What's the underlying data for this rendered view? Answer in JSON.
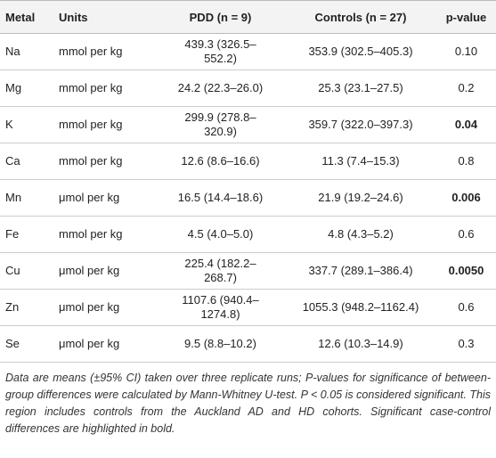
{
  "table": {
    "header": [
      "Metal",
      "Units",
      "PDD (n = 9)",
      "Controls (n = 27)",
      "p-value"
    ],
    "rows": [
      {
        "metal": "Na",
        "units": "mmol per kg",
        "pdd": "439.3 (326.5–552.2)",
        "controls": "353.9 (302.5–405.3)",
        "p": "0.10",
        "bold": false
      },
      {
        "metal": "Mg",
        "units": "mmol per kg",
        "pdd": "24.2 (22.3–26.0)",
        "controls": "25.3 (23.1–27.5)",
        "p": "0.2",
        "bold": false
      },
      {
        "metal": "K",
        "units": "mmol per kg",
        "pdd": "299.9 (278.8–320.9)",
        "controls": "359.7 (322.0–397.3)",
        "p": "0.04",
        "bold": true
      },
      {
        "metal": "Ca",
        "units": "mmol per kg",
        "pdd": "12.6 (8.6–16.6)",
        "controls": "11.3 (7.4–15.3)",
        "p": "0.8",
        "bold": false
      },
      {
        "metal": "Mn",
        "units": "μmol per kg",
        "pdd": "16.5 (14.4–18.6)",
        "controls": "21.9 (19.2–24.6)",
        "p": "0.006",
        "bold": true
      },
      {
        "metal": "Fe",
        "units": "mmol per kg",
        "pdd": "4.5 (4.0–5.0)",
        "controls": "4.8 (4.3–5.2)",
        "p": "0.6",
        "bold": false
      },
      {
        "metal": "Cu",
        "units": "μmol per kg",
        "pdd": "225.4 (182.2–268.7)",
        "controls": "337.7 (289.1–386.4)",
        "p": "0.0050",
        "bold": true
      },
      {
        "metal": "Zn",
        "units": "μmol per kg",
        "pdd": "1107.6 (940.4–1274.8)",
        "controls": "1055.3 (948.2–1162.4)",
        "p": "0.6",
        "bold": false
      },
      {
        "metal": "Se",
        "units": "μmol per kg",
        "pdd": "9.5 (8.8–10.2)",
        "controls": "12.6 (10.3–14.9)",
        "p": "0.3",
        "bold": false
      }
    ],
    "footnote": "Data are means (±95% CI) taken over three replicate runs; P-values for significance of between-group differences were calculated by Mann-Whitney U-test. P < 0.05 is considered significant. This region includes controls from the Auckland AD and HD cohorts. Significant case-control differences are highlighted in bold."
  }
}
